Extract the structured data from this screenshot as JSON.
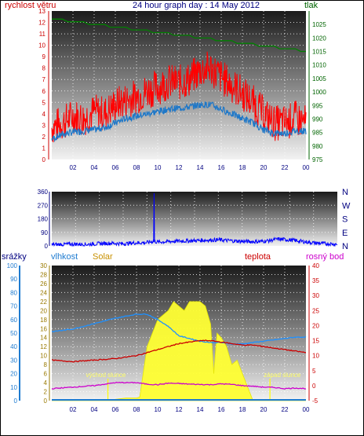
{
  "header": {
    "left_label": "rychlost větru",
    "title": "24 hour graph day : 14 May 2012",
    "right_label": "tlak"
  },
  "colors": {
    "wind": "#ff0000",
    "wind_avg": "#1f78c8",
    "pressure": "#008000",
    "wind_dir": "#0000ff",
    "humidity": "#1e90ff",
    "solar": "#ffff33",
    "temperature": "#cc0000",
    "dew_point": "#cc00cc",
    "rain": "#1e7bd0"
  },
  "chart_data": [
    {
      "type": "line",
      "id": "wind_pressure",
      "x_ticks": [
        "02",
        "04",
        "06",
        "08",
        "10",
        "12",
        "14",
        "16",
        "18",
        "20",
        "22",
        "00"
      ],
      "y_left": {
        "label": "rychlost větru",
        "range": [
          0,
          13
        ],
        "ticks": [
          0,
          1,
          2,
          3,
          4,
          5,
          6,
          7,
          8,
          9,
          10,
          11,
          12,
          13
        ]
      },
      "y_right": {
        "label": "tlak",
        "range": [
          975,
          1030
        ],
        "ticks": [
          975,
          980,
          985,
          990,
          995,
          1000,
          1005,
          1010,
          1015,
          1020,
          1025
        ]
      },
      "grid": true,
      "series": [
        {
          "name": "rychlost větru",
          "axis": "left",
          "x": [
            0,
            1,
            2,
            3,
            4,
            5,
            6,
            7,
            8,
            9,
            10,
            11,
            12,
            13,
            14,
            15,
            16,
            17,
            18,
            19,
            20,
            21,
            22,
            23,
            24
          ],
          "values": [
            2.8,
            3.2,
            3.8,
            3.6,
            4.2,
            4.0,
            4.8,
            5.2,
            5.5,
            6.0,
            6.3,
            6.8,
            6.7,
            7.0,
            7.8,
            8.0,
            7.2,
            6.5,
            5.8,
            5.0,
            4.0,
            3.2,
            3.2,
            3.6,
            3.2
          ]
        },
        {
          "axis": "left",
          "x": [
            0,
            1,
            2,
            3,
            4,
            5,
            6,
            7,
            8,
            9,
            10,
            11,
            12,
            13,
            14,
            15,
            16,
            17,
            18,
            19,
            20,
            21,
            22,
            23,
            24
          ],
          "values": [
            1.8,
            2.2,
            2.4,
            2.5,
            2.6,
            2.8,
            3.2,
            3.6,
            3.8,
            4.0,
            4.2,
            4.4,
            4.5,
            4.6,
            4.8,
            4.8,
            4.4,
            4.0,
            3.6,
            3.2,
            2.6,
            2.3,
            2.3,
            2.5,
            2.5
          ]
        },
        {
          "name": "tlak",
          "axis": "right",
          "x": [
            0,
            2,
            4,
            6,
            8,
            10,
            12,
            14,
            16,
            18,
            20,
            22,
            24
          ],
          "values": [
            1027,
            1026,
            1025,
            1024,
            1023,
            1022,
            1021,
            1020,
            1019,
            1018,
            1017,
            1016,
            1015
          ]
        }
      ]
    },
    {
      "type": "line",
      "id": "wind_direction",
      "y_left": {
        "range": [
          0,
          360
        ],
        "ticks": [
          0,
          90,
          180,
          270,
          360
        ]
      },
      "y_right_labels": [
        "N",
        "W",
        "S",
        "E",
        "N"
      ],
      "grid": true,
      "series": [
        {
          "x": [
            0,
            1,
            2,
            3,
            4,
            5,
            6,
            7,
            8,
            8.5,
            9,
            10,
            11,
            12,
            13,
            14,
            15,
            16,
            17,
            18,
            19,
            20,
            21,
            22,
            23,
            24
          ],
          "values": [
            8,
            10,
            12,
            10,
            15,
            18,
            14,
            20,
            22,
            30,
            25,
            30,
            32,
            35,
            38,
            40,
            35,
            30,
            28,
            32,
            45,
            40,
            30,
            20,
            15,
            12
          ]
        }
      ]
    },
    {
      "type": "line",
      "id": "weather",
      "labels": {
        "rain": "srážky",
        "humidity": "vlhkost",
        "solar": "Solar",
        "temperature": "teplota",
        "dew_point": "rosný bod"
      },
      "x_ticks": [
        "02",
        "04",
        "06",
        "08",
        "10",
        "12",
        "14",
        "16",
        "18",
        "20",
        "22",
        "00"
      ],
      "y_rain": {
        "label": "srážky",
        "range": [
          0,
          100
        ],
        "ticks": [
          0,
          10,
          20,
          30,
          40,
          50,
          60,
          70,
          80,
          90,
          100
        ]
      },
      "y_solar": {
        "label": "Solar",
        "range": [
          0,
          30
        ],
        "ticks": [
          0,
          2,
          4,
          6,
          8,
          10,
          12,
          14,
          16,
          18,
          20,
          22,
          24,
          26,
          28,
          30
        ]
      },
      "y_temp": {
        "label": "teplota",
        "range": [
          -5,
          40
        ],
        "ticks": [
          -5,
          0,
          5,
          10,
          15,
          20,
          25,
          30,
          35,
          40
        ]
      },
      "annotations": [
        {
          "text": "východ slunce",
          "x": 5.3
        },
        {
          "text": "západ slunce",
          "x": 20.6
        }
      ],
      "grid": true,
      "series": [
        {
          "name": "vlhkost",
          "axis": "rain",
          "x": [
            0,
            2,
            4,
            6,
            8,
            9,
            10,
            11,
            12,
            13,
            14,
            15,
            16,
            17,
            18,
            19,
            20,
            21,
            22,
            23,
            24
          ],
          "values": [
            51,
            53,
            57,
            61,
            64,
            64,
            60,
            55,
            48,
            46,
            44,
            43,
            43,
            42,
            42,
            43,
            44,
            45,
            46,
            47,
            47
          ]
        },
        {
          "name": "Solar",
          "type": "area",
          "axis": "solar",
          "x": [
            0,
            5.3,
            6,
            7,
            8,
            8.3,
            9,
            10,
            11,
            11.5,
            12,
            12.5,
            13,
            13.5,
            14,
            14.5,
            15,
            15.3,
            15.6,
            16,
            16.5,
            17,
            17.5,
            18,
            18.5,
            19,
            20.6,
            24
          ],
          "values": [
            0,
            0,
            0.3,
            0.6,
            0.6,
            0.8,
            12,
            18,
            20,
            22,
            21,
            20,
            22,
            22,
            22,
            21,
            17,
            6,
            15,
            14,
            12,
            8,
            9,
            6,
            3,
            0,
            0,
            0
          ]
        },
        {
          "name": "teplota",
          "axis": "temp",
          "x": [
            0,
            2,
            4,
            6,
            8,
            9,
            10,
            11,
            12,
            13,
            14,
            15,
            16,
            17,
            18,
            19,
            20,
            21,
            22,
            23,
            24
          ],
          "values": [
            8.5,
            8,
            8.5,
            9,
            10,
            11,
            12,
            13,
            14,
            14.5,
            15,
            15,
            14.5,
            14,
            13.5,
            13.5,
            13,
            12.5,
            12,
            11.5,
            11
          ]
        },
        {
          "name": "rosný bod",
          "axis": "temp",
          "x": [
            0,
            2,
            4,
            6,
            8,
            9,
            10,
            11,
            12,
            13,
            14,
            15,
            16,
            17,
            18,
            19,
            20,
            21,
            22,
            23,
            24
          ],
          "values": [
            -1,
            -0.5,
            0,
            1,
            1,
            0.5,
            0.3,
            0.8,
            0.7,
            0.5,
            0.4,
            0.3,
            0.6,
            0.4,
            0,
            -0.2,
            -0.5,
            -0.6,
            -1,
            -0.8,
            -1
          ]
        },
        {
          "name": "srážky",
          "axis": "rain",
          "x": [
            0,
            24
          ],
          "values": [
            0,
            0
          ]
        }
      ]
    }
  ]
}
